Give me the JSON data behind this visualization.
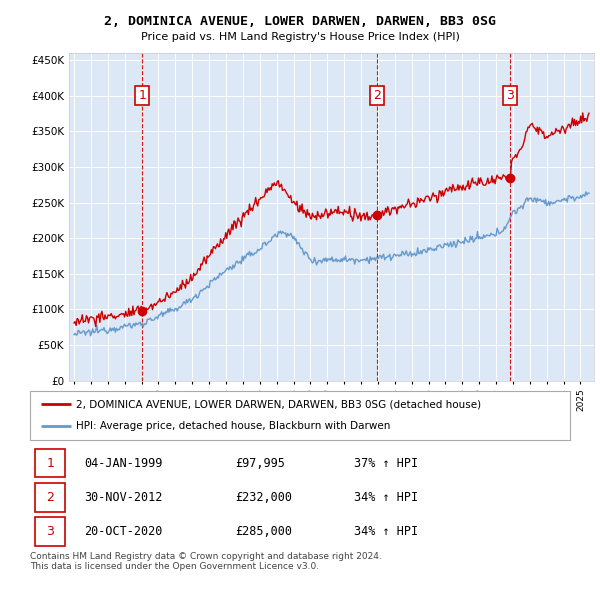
{
  "title": "2, DOMINICA AVENUE, LOWER DARWEN, DARWEN, BB3 0SG",
  "subtitle": "Price paid vs. HM Land Registry's House Price Index (HPI)",
  "yticks": [
    0,
    50000,
    100000,
    150000,
    200000,
    250000,
    300000,
    350000,
    400000,
    450000
  ],
  "plot_bg_color": "#dce8f5",
  "hpi_color": "#6699cc",
  "price_color": "#cc0000",
  "vline_color": "#cc0000",
  "box_color": "#cc0000",
  "sale_years": [
    1999.04,
    2012.92,
    2020.8
  ],
  "sale_prices": [
    97995,
    232000,
    285000
  ],
  "sale_labels": [
    "1",
    "2",
    "3"
  ],
  "transactions": [
    {
      "num": "1",
      "date": "04-JAN-1999",
      "price": "£97,995",
      "hpi": "37% ↑ HPI"
    },
    {
      "num": "2",
      "date": "30-NOV-2012",
      "price": "£232,000",
      "hpi": "34% ↑ HPI"
    },
    {
      "num": "3",
      "date": "20-OCT-2020",
      "price": "£285,000",
      "hpi": "34% ↑ HPI"
    }
  ],
  "legend_entries": [
    "2, DOMINICA AVENUE, LOWER DARWEN, DARWEN, BB3 0SG (detached house)",
    "HPI: Average price, detached house, Blackburn with Darwen"
  ],
  "footnote": "Contains HM Land Registry data © Crown copyright and database right 2024.\nThis data is licensed under the Open Government Licence v3.0.",
  "background_color": "#ffffff"
}
